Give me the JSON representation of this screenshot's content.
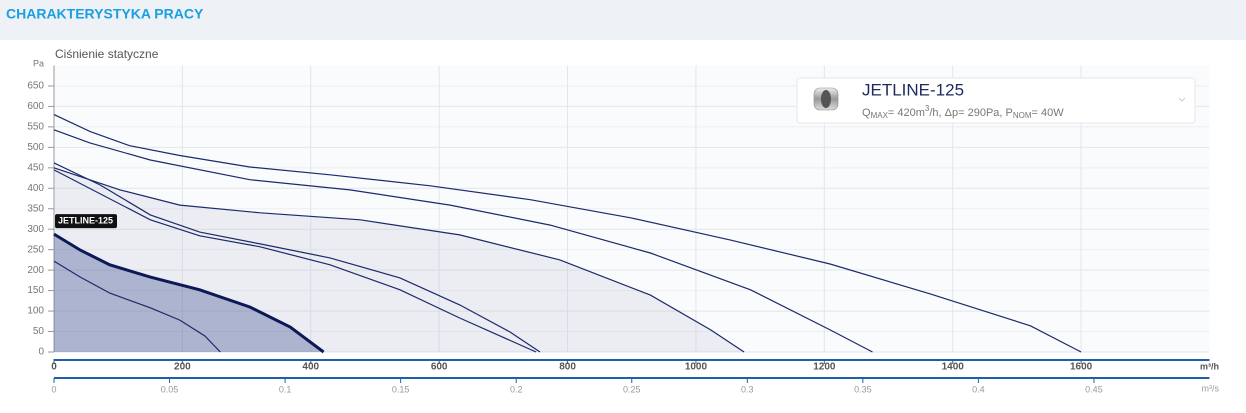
{
  "header": {
    "title": "CHARAKTERYSTYKA PRACY"
  },
  "chart_data": {
    "type": "line",
    "y_label": "Ciśnienie statyczne",
    "y_unit": "Pa",
    "x_unit": "m³/h",
    "x2_unit": "m³/s",
    "xlim": [
      0,
      1800
    ],
    "xticks": [
      0,
      200,
      400,
      600,
      800,
      1000,
      1200,
      1400,
      1600
    ],
    "x2lim": [
      0,
      0.5
    ],
    "x2ticks": [
      0,
      0.05,
      0.1,
      0.15,
      0.2,
      0.25,
      0.3,
      0.35,
      0.4,
      0.45
    ],
    "ylim": [
      0,
      700
    ],
    "yticks": [
      0,
      50,
      100,
      150,
      200,
      250,
      300,
      350,
      400,
      450,
      500,
      550,
      600,
      650
    ],
    "grid": true,
    "series": [
      {
        "color": "#1b2a6b",
        "x": [
          0,
          56,
          118,
          196,
          305,
          430,
          586,
          742,
          898,
          1053,
          1209,
          1365,
          1521,
          1600
        ],
        "values": [
          580,
          539,
          504,
          480,
          452,
          433,
          406,
          372,
          328,
          274,
          215,
          142,
          64,
          0
        ]
      },
      {
        "color": "#1b2a6b",
        "x": [
          0,
          56,
          150,
          305,
          461,
          617,
          773,
          929,
          1085,
          1209,
          1275
        ],
        "values": [
          543,
          511,
          469,
          421,
          396,
          359,
          310,
          242,
          152,
          54,
          0
        ]
      },
      {
        "color": "#1b2a6b",
        "x": [
          0,
          103,
          196,
          321,
          477,
          632,
          788,
          929,
          1023,
          1075
        ],
        "values": [
          450,
          396,
          359,
          340,
          323,
          286,
          225,
          139,
          54,
          0
        ]
      },
      {
        "color": "#1b2a6b",
        "x": [
          0,
          72,
          150,
          227,
          321,
          430,
          539,
          632,
          710,
          757
        ],
        "values": [
          462,
          408,
          335,
          293,
          264,
          230,
          181,
          115,
          49,
          0
        ]
      },
      {
        "color": "#1b2a6b",
        "x": [
          0,
          150,
          227,
          321,
          430,
          539,
          632,
          751
        ],
        "values": [
          445,
          323,
          284,
          257,
          213,
          152,
          83,
          0
        ]
      },
      {
        "name": "JETLINE-125",
        "color": "#0d1856",
        "highlight": true,
        "x": [
          0,
          41,
          87,
          150,
          227,
          305,
          368,
          420
        ],
        "values": [
          288,
          249,
          213,
          183,
          152,
          110,
          61,
          0
        ]
      },
      {
        "color": "#1b2a6b",
        "x": [
          0,
          41,
          87,
          150,
          196,
          235,
          259
        ],
        "values": [
          222,
          183,
          144,
          108,
          78,
          39,
          0
        ]
      }
    ],
    "legend": {
      "title": "JETLINE-125",
      "spec_parts": [
        "Q",
        "MAX",
        "= 420m",
        "3",
        "/h, Δp= 290Pa, P",
        "NOM",
        "= 40W"
      ]
    }
  }
}
